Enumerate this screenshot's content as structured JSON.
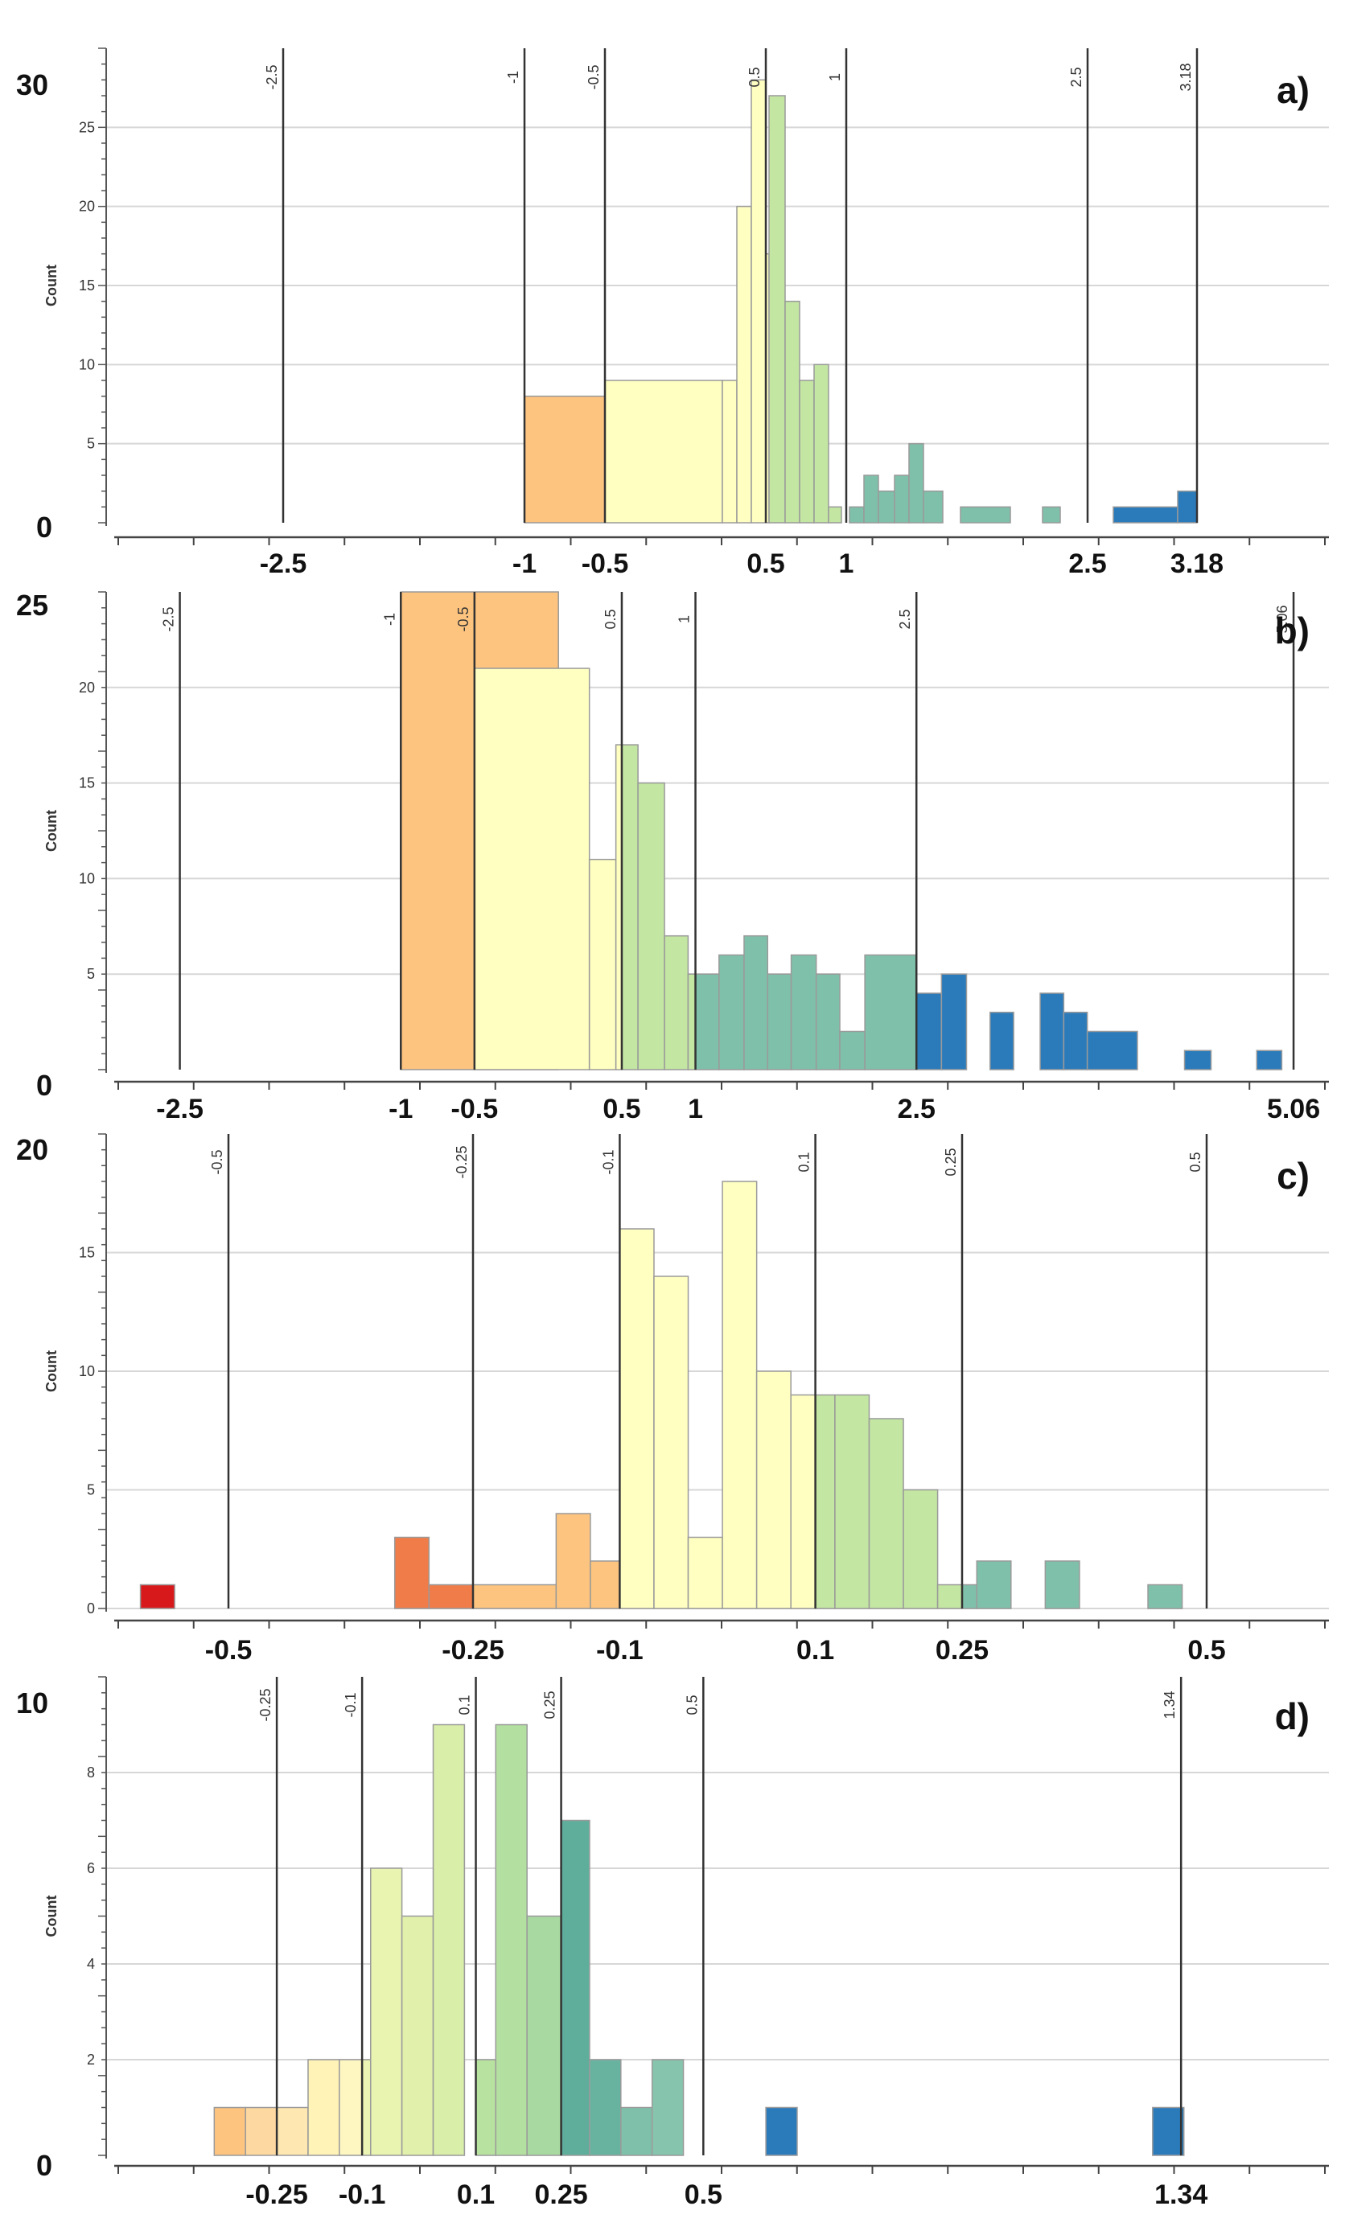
{
  "chart_data": [
    {
      "type": "bar",
      "panel_label": "a)",
      "ylabel": "Count",
      "y_axis_labels": [
        "30",
        "0"
      ],
      "y_ticks": [
        "5",
        "10",
        "15",
        "20",
        "25"
      ],
      "ylim": [
        0,
        30
      ],
      "xlim": [
        -3.6,
        4.0
      ],
      "x_ticks": [
        {
          "label": "-2.5",
          "value": -2.5
        },
        {
          "label": "-1",
          "value": -1
        },
        {
          "label": "-0.5",
          "value": -0.5
        },
        {
          "label": "0.5",
          "value": 0.5
        },
        {
          "label": "1",
          "value": 1
        },
        {
          "label": "2.5",
          "value": 2.5
        },
        {
          "label": "3.18",
          "value": 3.18
        }
      ],
      "class_breaks": [
        {
          "label": "-2.5",
          "value": -2.5
        },
        {
          "label": "-1",
          "value": -1
        },
        {
          "label": "-0.5",
          "value": -0.5
        },
        {
          "label": "0.5",
          "value": 0.5
        },
        {
          "label": "1",
          "value": 1
        },
        {
          "label": "2.5",
          "value": 2.5
        },
        {
          "label": "3.18",
          "value": 3.18
        }
      ],
      "bars": [
        {
          "x0": -1.0,
          "x1": -0.5,
          "count": 8,
          "color": "#fdc47f"
        },
        {
          "x0": -0.5,
          "x1": 0.23,
          "count": 9,
          "color": "#ffffc2"
        },
        {
          "x0": 0.23,
          "x1": 0.32,
          "count": 9,
          "color": "#ffffc2"
        },
        {
          "x0": 0.32,
          "x1": 0.41,
          "count": 20,
          "color": "#ffffc2"
        },
        {
          "x0": 0.41,
          "x1": 0.5,
          "count": 28,
          "color": "#ffffc2"
        },
        {
          "x0": 0.5,
          "x1": 0.52,
          "count": 17,
          "color": "#ffffc2"
        },
        {
          "x0": 0.52,
          "x1": 0.62,
          "count": 27,
          "color": "#c4e6a3"
        },
        {
          "x0": 0.62,
          "x1": 0.71,
          "count": 14,
          "color": "#c4e6a3"
        },
        {
          "x0": 0.71,
          "x1": 0.8,
          "count": 9,
          "color": "#c4e6a3"
        },
        {
          "x0": 0.8,
          "x1": 0.89,
          "count": 10,
          "color": "#c4e6a3"
        },
        {
          "x0": 0.89,
          "x1": 0.97,
          "count": 1,
          "color": "#c4e6a3"
        },
        {
          "x0": 1.02,
          "x1": 1.11,
          "count": 1,
          "color": "#7fc0aa"
        },
        {
          "x0": 1.11,
          "x1": 1.2,
          "count": 3,
          "color": "#7fc0aa"
        },
        {
          "x0": 1.2,
          "x1": 1.3,
          "count": 2,
          "color": "#7fc0aa"
        },
        {
          "x0": 1.3,
          "x1": 1.39,
          "count": 3,
          "color": "#7fc0aa"
        },
        {
          "x0": 1.39,
          "x1": 1.48,
          "count": 5,
          "color": "#7fc0aa"
        },
        {
          "x0": 1.48,
          "x1": 1.6,
          "count": 2,
          "color": "#7fc0aa"
        },
        {
          "x0": 1.71,
          "x1": 2.02,
          "count": 1,
          "color": "#7fc0aa"
        },
        {
          "x0": 2.22,
          "x1": 2.33,
          "count": 1,
          "color": "#7fc0aa"
        },
        {
          "x0": 2.66,
          "x1": 3.06,
          "count": 1,
          "color": "#2b7bba"
        },
        {
          "x0": 3.06,
          "x1": 3.18,
          "count": 2,
          "color": "#2b7bba"
        }
      ]
    },
    {
      "type": "bar",
      "panel_label": "b)",
      "ylabel": "Count",
      "y_axis_labels": [
        "25",
        "0"
      ],
      "y_ticks": [
        "5",
        "10",
        "15",
        "20"
      ],
      "ylim": [
        0,
        25
      ],
      "xlim": [
        -3.0,
        5.3
      ],
      "x_ticks": [
        {
          "label": "-2.5",
          "value": -2.5
        },
        {
          "label": "-1",
          "value": -1
        },
        {
          "label": "-0.5",
          "value": -0.5
        },
        {
          "label": "0.5",
          "value": 0.5
        },
        {
          "label": "1",
          "value": 1
        },
        {
          "label": "2.5",
          "value": 2.5
        },
        {
          "label": "5.06",
          "value": 5.06
        }
      ],
      "class_breaks": [
        {
          "label": "-2.5",
          "value": -2.5
        },
        {
          "label": "-1",
          "value": -1
        },
        {
          "label": "-0.5",
          "value": -0.5
        },
        {
          "label": "0.5",
          "value": 0.5
        },
        {
          "label": "1",
          "value": 1
        },
        {
          "label": "2.5",
          "value": 2.5
        },
        {
          "label": "5.06",
          "value": 5.06
        }
      ],
      "bars": [
        {
          "x0": -1.0,
          "x1": -0.5,
          "count": 25,
          "color": "#fdc47f"
        },
        {
          "x0": -0.5,
          "x1": 0.07,
          "count": 25,
          "color": "#fdc47f"
        },
        {
          "x0": -0.5,
          "x1": 0.28,
          "count": 21,
          "color": "#ffffc2"
        },
        {
          "x0": 0.28,
          "x1": 0.46,
          "count": 11,
          "color": "#ffffc2"
        },
        {
          "x0": 0.46,
          "x1": 0.5,
          "count": 17,
          "color": "#ffffc2"
        },
        {
          "x0": 0.5,
          "x1": 0.61,
          "count": 17,
          "color": "#c4e6a3"
        },
        {
          "x0": 0.61,
          "x1": 0.79,
          "count": 15,
          "color": "#c4e6a3"
        },
        {
          "x0": 0.79,
          "x1": 0.95,
          "count": 7,
          "color": "#c4e6a3"
        },
        {
          "x0": 0.95,
          "x1": 1.0,
          "count": 5,
          "color": "#c4e6a3"
        },
        {
          "x0": 1.0,
          "x1": 1.16,
          "count": 5,
          "color": "#7fc0aa"
        },
        {
          "x0": 1.16,
          "x1": 1.33,
          "count": 6,
          "color": "#7fc0aa"
        },
        {
          "x0": 1.33,
          "x1": 1.49,
          "count": 7,
          "color": "#7fc0aa"
        },
        {
          "x0": 1.49,
          "x1": 1.65,
          "count": 5,
          "color": "#7fc0aa"
        },
        {
          "x0": 1.65,
          "x1": 1.82,
          "count": 6,
          "color": "#7fc0aa"
        },
        {
          "x0": 1.82,
          "x1": 1.98,
          "count": 5,
          "color": "#7fc0aa"
        },
        {
          "x0": 1.98,
          "x1": 2.15,
          "count": 2,
          "color": "#7fc0aa"
        },
        {
          "x0": 2.15,
          "x1": 2.5,
          "count": 6,
          "color": "#7fc0aa"
        },
        {
          "x0": 2.5,
          "x1": 2.67,
          "count": 4,
          "color": "#2b7bba"
        },
        {
          "x0": 2.67,
          "x1": 2.84,
          "count": 5,
          "color": "#2b7bba"
        },
        {
          "x0": 3.0,
          "x1": 3.16,
          "count": 3,
          "color": "#2b7bba"
        },
        {
          "x0": 3.34,
          "x1": 3.5,
          "count": 4,
          "color": "#2b7bba"
        },
        {
          "x0": 3.5,
          "x1": 3.66,
          "count": 3,
          "color": "#2b7bba"
        },
        {
          "x0": 3.66,
          "x1": 4.0,
          "count": 2,
          "color": "#2b7bba"
        },
        {
          "x0": 4.32,
          "x1": 4.5,
          "count": 1,
          "color": "#2b7bba"
        },
        {
          "x0": 4.81,
          "x1": 4.98,
          "count": 1,
          "color": "#2b7bba"
        }
      ]
    },
    {
      "type": "bar",
      "panel_label": "c)",
      "ylabel": "Count",
      "y_axis_labels": [
        "20"
      ],
      "y_ticks": [
        "0",
        "5",
        "10",
        "15"
      ],
      "ylim": [
        0,
        20
      ],
      "xlim": [
        -0.625,
        0.625
      ],
      "x_ticks": [
        {
          "label": "-0.5",
          "value": -0.5
        },
        {
          "label": "-0.25",
          "value": -0.25
        },
        {
          "label": "-0.1",
          "value": -0.1
        },
        {
          "label": "0.1",
          "value": 0.1
        },
        {
          "label": "0.25",
          "value": 0.25
        },
        {
          "label": "0.5",
          "value": 0.5
        }
      ],
      "class_breaks": [
        {
          "label": "-0.5",
          "value": -0.5
        },
        {
          "label": "-0.25",
          "value": -0.25
        },
        {
          "label": "-0.1",
          "value": -0.1
        },
        {
          "label": "0.1",
          "value": 0.1
        },
        {
          "label": "0.25",
          "value": 0.25
        },
        {
          "label": "0.5",
          "value": 0.5
        }
      ],
      "bars": [
        {
          "x0": -0.59,
          "x1": -0.555,
          "count": 1,
          "color": "#d7191c"
        },
        {
          "x0": -0.33,
          "x1": -0.295,
          "count": 3,
          "color": "#f07c4a"
        },
        {
          "x0": -0.295,
          "x1": -0.25,
          "count": 1,
          "color": "#f07c4a"
        },
        {
          "x0": -0.25,
          "x1": -0.165,
          "count": 1,
          "color": "#fdc47f"
        },
        {
          "x0": -0.165,
          "x1": -0.13,
          "count": 4,
          "color": "#fdc47f"
        },
        {
          "x0": -0.13,
          "x1": -0.1,
          "count": 2,
          "color": "#fdc47f"
        },
        {
          "x0": -0.1,
          "x1": -0.065,
          "count": 16,
          "color": "#ffffc2"
        },
        {
          "x0": -0.065,
          "x1": -0.03,
          "count": 14,
          "color": "#ffffc2"
        },
        {
          "x0": -0.03,
          "x1": 0.005,
          "count": 3,
          "color": "#ffffc2"
        },
        {
          "x0": 0.005,
          "x1": 0.04,
          "count": 18,
          "color": "#ffffc2"
        },
        {
          "x0": 0.04,
          "x1": 0.075,
          "count": 10,
          "color": "#ffffc2"
        },
        {
          "x0": 0.075,
          "x1": 0.1,
          "count": 9,
          "color": "#ffffc2"
        },
        {
          "x0": 0.1,
          "x1": 0.12,
          "count": 9,
          "color": "#c4e6a3"
        },
        {
          "x0": 0.12,
          "x1": 0.155,
          "count": 9,
          "color": "#c4e6a3"
        },
        {
          "x0": 0.155,
          "x1": 0.19,
          "count": 8,
          "color": "#c4e6a3"
        },
        {
          "x0": 0.19,
          "x1": 0.225,
          "count": 5,
          "color": "#c4e6a3"
        },
        {
          "x0": 0.225,
          "x1": 0.25,
          "count": 1,
          "color": "#c4e6a3"
        },
        {
          "x0": 0.25,
          "x1": 0.265,
          "count": 1,
          "color": "#7fc0aa"
        },
        {
          "x0": 0.265,
          "x1": 0.3,
          "count": 2,
          "color": "#7fc0aa"
        },
        {
          "x0": 0.335,
          "x1": 0.37,
          "count": 2,
          "color": "#7fc0aa"
        },
        {
          "x0": 0.44,
          "x1": 0.475,
          "count": 1,
          "color": "#7fc0aa"
        }
      ]
    },
    {
      "type": "bar",
      "panel_label": "d)",
      "ylabel": "Count",
      "y_axis_labels": [
        "10",
        "0"
      ],
      "y_ticks": [
        "2",
        "4",
        "6",
        "8"
      ],
      "ylim": [
        0,
        10
      ],
      "xlim": [
        -0.55,
        1.6
      ],
      "x_ticks": [
        {
          "label": "-0.25",
          "value": -0.25
        },
        {
          "label": "-0.1",
          "value": -0.1
        },
        {
          "label": "0.1",
          "value": 0.1
        },
        {
          "label": "0.25",
          "value": 0.25
        },
        {
          "label": "0.5",
          "value": 0.5
        },
        {
          "label": "1.34",
          "value": 1.34
        }
      ],
      "class_breaks": [
        {
          "label": "-0.25",
          "value": -0.25
        },
        {
          "label": "-0.1",
          "value": -0.1
        },
        {
          "label": "0.1",
          "value": 0.1
        },
        {
          "label": "0.25",
          "value": 0.25
        },
        {
          "label": "0.5",
          "value": 0.5
        },
        {
          "label": "1.34",
          "value": 1.34
        }
      ],
      "bars": [
        {
          "x0": -0.36,
          "x1": -0.305,
          "count": 1,
          "color": "#fdc47f"
        },
        {
          "x0": -0.305,
          "x1": -0.25,
          "count": 1,
          "color": "#fdd8a0"
        },
        {
          "x0": -0.25,
          "x1": -0.195,
          "count": 1,
          "color": "#fee7b0"
        },
        {
          "x0": -0.195,
          "x1": -0.14,
          "count": 2,
          "color": "#fff3b8"
        },
        {
          "x0": -0.14,
          "x1": -0.1,
          "count": 2,
          "color": "#fff7c2"
        },
        {
          "x0": -0.1,
          "x1": -0.085,
          "count": 2,
          "color": "#ecf5b4"
        },
        {
          "x0": -0.085,
          "x1": -0.03,
          "count": 6,
          "color": "#e8f4b0"
        },
        {
          "x0": -0.03,
          "x1": 0.025,
          "count": 5,
          "color": "#e1f1ac"
        },
        {
          "x0": 0.025,
          "x1": 0.08,
          "count": 9,
          "color": "#d9eea8"
        },
        {
          "x0": 0.1,
          "x1": 0.135,
          "count": 2,
          "color": "#b8e2a0"
        },
        {
          "x0": 0.135,
          "x1": 0.19,
          "count": 9,
          "color": "#b3e0a0"
        },
        {
          "x0": 0.19,
          "x1": 0.25,
          "count": 5,
          "color": "#a8d9a0"
        },
        {
          "x0": 0.25,
          "x1": 0.3,
          "count": 7,
          "color": "#5fae9c"
        },
        {
          "x0": 0.3,
          "x1": 0.355,
          "count": 2,
          "color": "#68b3a0"
        },
        {
          "x0": 0.355,
          "x1": 0.41,
          "count": 1,
          "color": "#7fc0aa"
        },
        {
          "x0": 0.41,
          "x1": 0.465,
          "count": 2,
          "color": "#86c4ae"
        },
        {
          "x0": 0.61,
          "x1": 0.665,
          "count": 1,
          "color": "#2b7bba"
        },
        {
          "x0": 1.29,
          "x1": 1.345,
          "count": 1,
          "color": "#2b7bba"
        }
      ]
    }
  ]
}
